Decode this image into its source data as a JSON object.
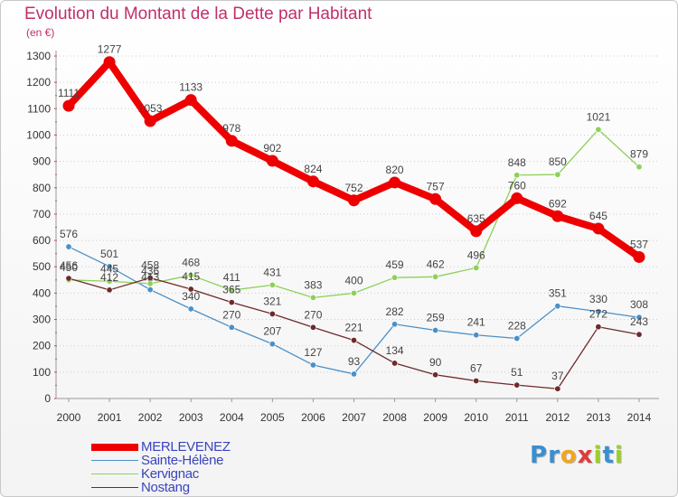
{
  "header": {
    "title": "Evolution du Montant de la Dette par Habitant",
    "subtitle": "(en €)"
  },
  "logo": {
    "text": "Proxiti",
    "letters": [
      {
        "ch": "P",
        "color": "#3a8fd0"
      },
      {
        "ch": "r",
        "color": "#3a8fd0"
      },
      {
        "ch": "o",
        "color": "#f2a51f"
      },
      {
        "ch": "x",
        "color": "#e03a3a"
      },
      {
        "ch": "i",
        "color": "#9bcf2a"
      },
      {
        "ch": "t",
        "color": "#3a8fd0"
      },
      {
        "ch": "i",
        "color": "#9bcf2a"
      }
    ]
  },
  "chart_data": {
    "type": "line",
    "title": "Evolution du Montant de la Dette par Habitant",
    "subtitle": "(en €)",
    "xlabel": "",
    "ylabel": "",
    "ylim": [
      0,
      1300
    ],
    "yticks": [
      0,
      100,
      200,
      300,
      400,
      500,
      600,
      700,
      800,
      900,
      1000,
      1100,
      1200,
      1300
    ],
    "grid": "horizontal dotted",
    "legend_position": "bottom-left",
    "x": [
      "2000",
      "2001",
      "2002",
      "2003",
      "2004",
      "2005",
      "2006",
      "2007",
      "2008",
      "2009",
      "2010",
      "2011",
      "2012",
      "2013",
      "2014"
    ],
    "series": [
      {
        "name": "MERLEVENEZ",
        "color": "#ee0000",
        "values": [
          1111,
          1277,
          1053,
          1133,
          978,
          902,
          824,
          752,
          820,
          757,
          635,
          760,
          692,
          645,
          537
        ]
      },
      {
        "name": "Sainte-Hélène",
        "color": "#4a90c8",
        "values": [
          576,
          501,
          413,
          340,
          270,
          207,
          127,
          93,
          282,
          259,
          241,
          228,
          351,
          330,
          308
        ]
      },
      {
        "name": "Kervignac",
        "color": "#8ed058",
        "values": [
          450,
          445,
          436,
          468,
          411,
          431,
          383,
          400,
          459,
          462,
          496,
          848,
          850,
          1021,
          879
        ]
      },
      {
        "name": "Nostang",
        "color": "#6e2a2a",
        "values": [
          456,
          412,
          458,
          415,
          365,
          321,
          270,
          221,
          134,
          90,
          67,
          51,
          37,
          272,
          243
        ]
      }
    ]
  }
}
